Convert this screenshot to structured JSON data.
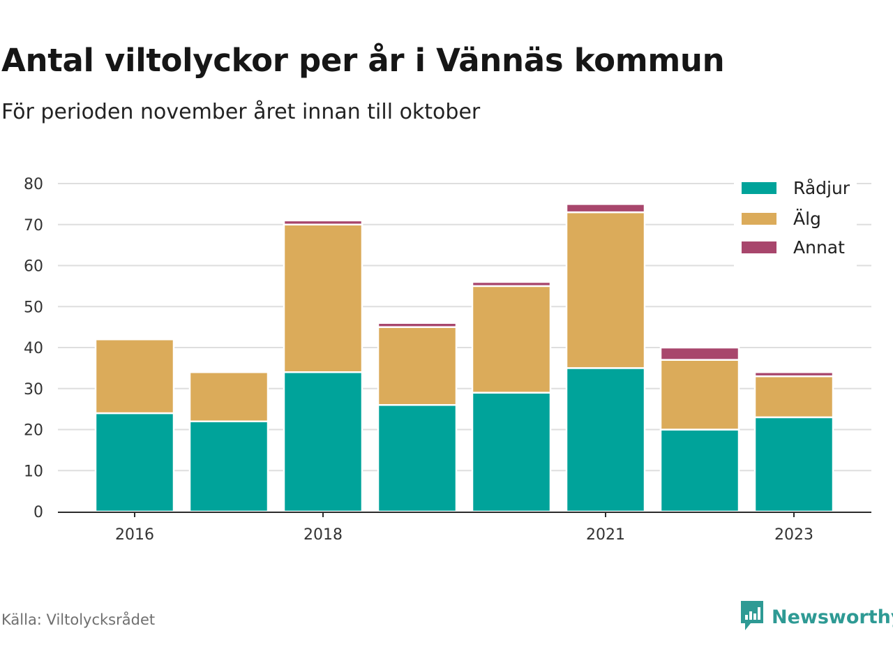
{
  "title": "Antal viltolyckor per år i Vännäs kommun",
  "subtitle": "För perioden november året innan till oktober",
  "source": "Källa: Viltolycksrådet",
  "brand": {
    "name": "Newsworthy",
    "icon": "newsworthy-logo-icon",
    "color": "#2e9a94"
  },
  "chart_data": {
    "type": "bar",
    "stacked": true,
    "categories": [
      "2016",
      "2017",
      "2018",
      "2019",
      "2020",
      "2021",
      "2022",
      "2023"
    ],
    "x_tick_labels": [
      "2016",
      "",
      "2018",
      "",
      "",
      "2021",
      "",
      "2023"
    ],
    "series": [
      {
        "name": "Rådjur",
        "color": "#00a39a",
        "values": [
          24,
          22,
          34,
          26,
          29,
          35,
          20,
          23
        ]
      },
      {
        "name": "Älg",
        "color": "#dbab5a",
        "values": [
          18,
          12,
          36,
          19,
          26,
          38,
          17,
          10
        ]
      },
      {
        "name": "Annat",
        "color": "#a8466c",
        "values": [
          0,
          0,
          1,
          1,
          1,
          2,
          3,
          1
        ]
      }
    ],
    "ylim": [
      0,
      80
    ],
    "yticks": [
      0,
      10,
      20,
      30,
      40,
      50,
      60,
      70,
      80
    ],
    "grid": true,
    "legend_position": "top-right"
  }
}
